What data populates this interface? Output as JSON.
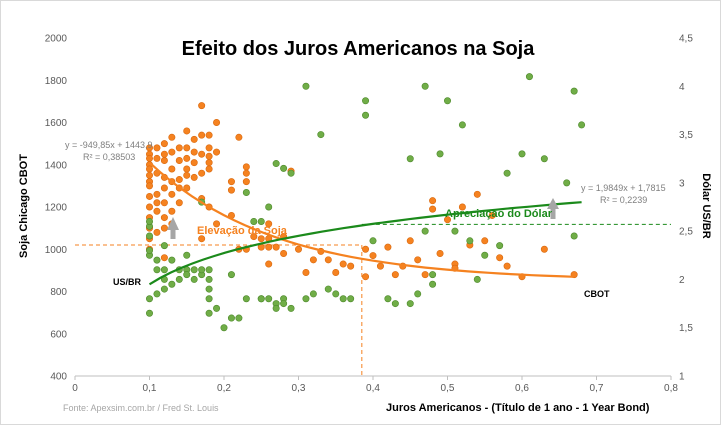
{
  "chart_data": {
    "type": "scatter",
    "title": "Efeito dos Juros Americanos na Soja",
    "xlabel": "Juros Americanos  -  (Título de 1 ano - 1 Year Bond)",
    "ylabel_left": "Soja Chicago CBOT",
    "ylabel_right": "Dólar US/BR",
    "source": "Fonte: Apexsim.com.br / Fred St. Louis",
    "xlim": [
      0,
      0.8
    ],
    "ylim_left": [
      400,
      2000
    ],
    "ylim_right": [
      1,
      4.5
    ],
    "x_ticks": [
      "0",
      "0,1",
      "0,2",
      "0,3",
      "0,4",
      "0,5",
      "0,6",
      "0,7",
      "0,8"
    ],
    "y_left_ticks": [
      "400",
      "600",
      "800",
      "1000",
      "1200",
      "1400",
      "1600",
      "1800",
      "2000"
    ],
    "y_right_ticks": [
      "1",
      "1,5",
      "2",
      "2,5",
      "3",
      "3,5",
      "4",
      "4,5"
    ],
    "colors": {
      "soja": "#F58220",
      "dolar": "#70AD47",
      "dolar_trend": "#1B8A1B",
      "guide_orange": "#F58220",
      "guide_green": "#1B8A1B",
      "arrow": "#A6A6A6"
    },
    "series": [
      {
        "name": "CBOT",
        "axis": "left",
        "points": [
          [
            0.1,
            1480
          ],
          [
            0.1,
            1450
          ],
          [
            0.1,
            1430
          ],
          [
            0.1,
            1400
          ],
          [
            0.1,
            1380
          ],
          [
            0.1,
            1350
          ],
          [
            0.1,
            1320
          ],
          [
            0.1,
            1300
          ],
          [
            0.1,
            1250
          ],
          [
            0.1,
            1200
          ],
          [
            0.1,
            1150
          ],
          [
            0.1,
            1100
          ],
          [
            0.1,
            1050
          ],
          [
            0.1,
            1000
          ],
          [
            0.11,
            1480
          ],
          [
            0.11,
            1430
          ],
          [
            0.11,
            1360
          ],
          [
            0.11,
            1260
          ],
          [
            0.11,
            1220
          ],
          [
            0.11,
            1180
          ],
          [
            0.11,
            1080
          ],
          [
            0.12,
            1500
          ],
          [
            0.12,
            1450
          ],
          [
            0.12,
            1420
          ],
          [
            0.12,
            1340
          ],
          [
            0.12,
            1290
          ],
          [
            0.12,
            1220
          ],
          [
            0.12,
            1150
          ],
          [
            0.12,
            1100
          ],
          [
            0.12,
            960
          ],
          [
            0.13,
            1530
          ],
          [
            0.13,
            1460
          ],
          [
            0.13,
            1380
          ],
          [
            0.13,
            1320
          ],
          [
            0.13,
            1260
          ],
          [
            0.13,
            1180
          ],
          [
            0.13,
            1120
          ],
          [
            0.14,
            1480
          ],
          [
            0.14,
            1420
          ],
          [
            0.14,
            1330
          ],
          [
            0.14,
            1290
          ],
          [
            0.14,
            1220
          ],
          [
            0.15,
            1560
          ],
          [
            0.15,
            1480
          ],
          [
            0.15,
            1430
          ],
          [
            0.15,
            1380
          ],
          [
            0.15,
            1350
          ],
          [
            0.15,
            1290
          ],
          [
            0.16,
            1520
          ],
          [
            0.16,
            1460
          ],
          [
            0.16,
            1410
          ],
          [
            0.16,
            1340
          ],
          [
            0.17,
            1680
          ],
          [
            0.17,
            1540
          ],
          [
            0.17,
            1450
          ],
          [
            0.17,
            1360
          ],
          [
            0.17,
            1240
          ],
          [
            0.17,
            1050
          ],
          [
            0.18,
            1540
          ],
          [
            0.18,
            1480
          ],
          [
            0.18,
            1440
          ],
          [
            0.18,
            1410
          ],
          [
            0.18,
            1380
          ],
          [
            0.18,
            1200
          ],
          [
            0.19,
            1600
          ],
          [
            0.19,
            1460
          ],
          [
            0.19,
            1120
          ],
          [
            0.21,
            1320
          ],
          [
            0.21,
            1280
          ],
          [
            0.21,
            1160
          ],
          [
            0.22,
            1530
          ],
          [
            0.22,
            1000
          ],
          [
            0.23,
            1390
          ],
          [
            0.23,
            1360
          ],
          [
            0.23,
            1320
          ],
          [
            0.23,
            1000
          ],
          [
            0.24,
            1060
          ],
          [
            0.25,
            1050
          ],
          [
            0.25,
            1010
          ],
          [
            0.26,
            1120
          ],
          [
            0.26,
            1050
          ],
          [
            0.26,
            1010
          ],
          [
            0.26,
            930
          ],
          [
            0.27,
            1010
          ],
          [
            0.28,
            1060
          ],
          [
            0.28,
            980
          ],
          [
            0.29,
            1370
          ],
          [
            0.3,
            1000
          ],
          [
            0.31,
            890
          ],
          [
            0.32,
            950
          ],
          [
            0.33,
            990
          ],
          [
            0.34,
            950
          ],
          [
            0.35,
            890
          ],
          [
            0.36,
            930
          ],
          [
            0.37,
            920
          ],
          [
            0.39,
            1000
          ],
          [
            0.39,
            870
          ],
          [
            0.4,
            970
          ],
          [
            0.41,
            920
          ],
          [
            0.42,
            1010
          ],
          [
            0.43,
            880
          ],
          [
            0.44,
            920
          ],
          [
            0.45,
            1040
          ],
          [
            0.46,
            950
          ],
          [
            0.47,
            880
          ],
          [
            0.48,
            1230
          ],
          [
            0.48,
            1190
          ],
          [
            0.49,
            980
          ],
          [
            0.5,
            1140
          ],
          [
            0.51,
            930
          ],
          [
            0.51,
            910
          ],
          [
            0.52,
            1200
          ],
          [
            0.53,
            1020
          ],
          [
            0.54,
            1260
          ],
          [
            0.55,
            1040
          ],
          [
            0.56,
            1160
          ],
          [
            0.57,
            960
          ],
          [
            0.58,
            920
          ],
          [
            0.6,
            870
          ],
          [
            0.63,
            1000
          ],
          [
            0.67,
            880
          ]
        ]
      },
      {
        "name": "US/BR",
        "axis": "right",
        "points": [
          [
            0.1,
            1.65
          ],
          [
            0.1,
            2.25
          ],
          [
            0.1,
            2.3
          ],
          [
            0.1,
            2.45
          ],
          [
            0.1,
            2.55
          ],
          [
            0.1,
            2.6
          ],
          [
            0.1,
            1.8
          ],
          [
            0.11,
            2.1
          ],
          [
            0.11,
            1.85
          ],
          [
            0.11,
            2.2
          ],
          [
            0.12,
            2.0
          ],
          [
            0.12,
            2.35
          ],
          [
            0.12,
            1.9
          ],
          [
            0.12,
            2.1
          ],
          [
            0.13,
            2.2
          ],
          [
            0.13,
            1.95
          ],
          [
            0.14,
            2.1
          ],
          [
            0.14,
            2.0
          ],
          [
            0.15,
            2.1
          ],
          [
            0.15,
            2.05
          ],
          [
            0.15,
            2.25
          ],
          [
            0.16,
            2.0
          ],
          [
            0.16,
            2.1
          ],
          [
            0.17,
            2.05
          ],
          [
            0.17,
            2.1
          ],
          [
            0.17,
            2.8
          ],
          [
            0.18,
            1.8
          ],
          [
            0.18,
            2.0
          ],
          [
            0.18,
            1.9
          ],
          [
            0.18,
            1.65
          ],
          [
            0.18,
            2.1
          ],
          [
            0.19,
            1.7
          ],
          [
            0.2,
            1.5
          ],
          [
            0.21,
            2.05
          ],
          [
            0.21,
            1.6
          ],
          [
            0.22,
            1.6
          ],
          [
            0.23,
            1.8
          ],
          [
            0.23,
            2.9
          ],
          [
            0.24,
            2.6
          ],
          [
            0.25,
            2.6
          ],
          [
            0.25,
            1.8
          ],
          [
            0.25,
            1.8
          ],
          [
            0.26,
            2.75
          ],
          [
            0.26,
            1.8
          ],
          [
            0.27,
            1.75
          ],
          [
            0.27,
            1.7
          ],
          [
            0.27,
            3.2
          ],
          [
            0.28,
            1.8
          ],
          [
            0.28,
            3.15
          ],
          [
            0.28,
            1.75
          ],
          [
            0.29,
            3.1
          ],
          [
            0.29,
            1.7
          ],
          [
            0.31,
            4.0
          ],
          [
            0.31,
            1.8
          ],
          [
            0.32,
            1.85
          ],
          [
            0.33,
            3.5
          ],
          [
            0.34,
            1.9
          ],
          [
            0.35,
            1.85
          ],
          [
            0.36,
            1.8
          ],
          [
            0.37,
            1.8
          ],
          [
            0.39,
            3.85
          ],
          [
            0.39,
            3.7
          ],
          [
            0.4,
            2.4
          ],
          [
            0.42,
            1.8
          ],
          [
            0.43,
            1.75
          ],
          [
            0.45,
            1.75
          ],
          [
            0.45,
            3.25
          ],
          [
            0.46,
            1.85
          ],
          [
            0.47,
            4.0
          ],
          [
            0.47,
            2.5
          ],
          [
            0.48,
            2.05
          ],
          [
            0.48,
            1.95
          ],
          [
            0.49,
            3.3
          ],
          [
            0.5,
            3.85
          ],
          [
            0.51,
            2.5
          ],
          [
            0.52,
            3.6
          ],
          [
            0.53,
            2.4
          ],
          [
            0.54,
            2.0
          ],
          [
            0.55,
            2.25
          ],
          [
            0.57,
            2.35
          ],
          [
            0.58,
            3.1
          ],
          [
            0.6,
            3.3
          ],
          [
            0.61,
            4.1
          ],
          [
            0.63,
            3.25
          ],
          [
            0.66,
            3.0
          ],
          [
            0.67,
            2.45
          ],
          [
            0.68,
            3.6
          ],
          [
            0.67,
            3.95
          ]
        ]
      }
    ],
    "trendlines": [
      {
        "name": "CBOT",
        "axis": "left",
        "equation": "y = -949,85x + 1443,9",
        "r2": "R² = 0,38503",
        "slope": -949.85,
        "intercept": 1443.9,
        "x_range": [
          0.1,
          0.67
        ],
        "label": "CBOT"
      },
      {
        "name": "US/BR",
        "axis": "right",
        "equation": "y = 1,9849x + 1,7815",
        "r2": "R² = 0,2239",
        "slope": 1.9849,
        "intercept": 1.7815,
        "x_range": [
          0.1,
          0.68
        ],
        "label": "US/BR"
      }
    ],
    "annotations": [
      {
        "text": "Elevação da Soja",
        "color": "#F58220"
      },
      {
        "text": "Apreciação do Dólar",
        "color": "#1B8A1B"
      }
    ],
    "guides": {
      "x": 0.385,
      "left_y": 1020,
      "right_y": 2.57
    }
  }
}
